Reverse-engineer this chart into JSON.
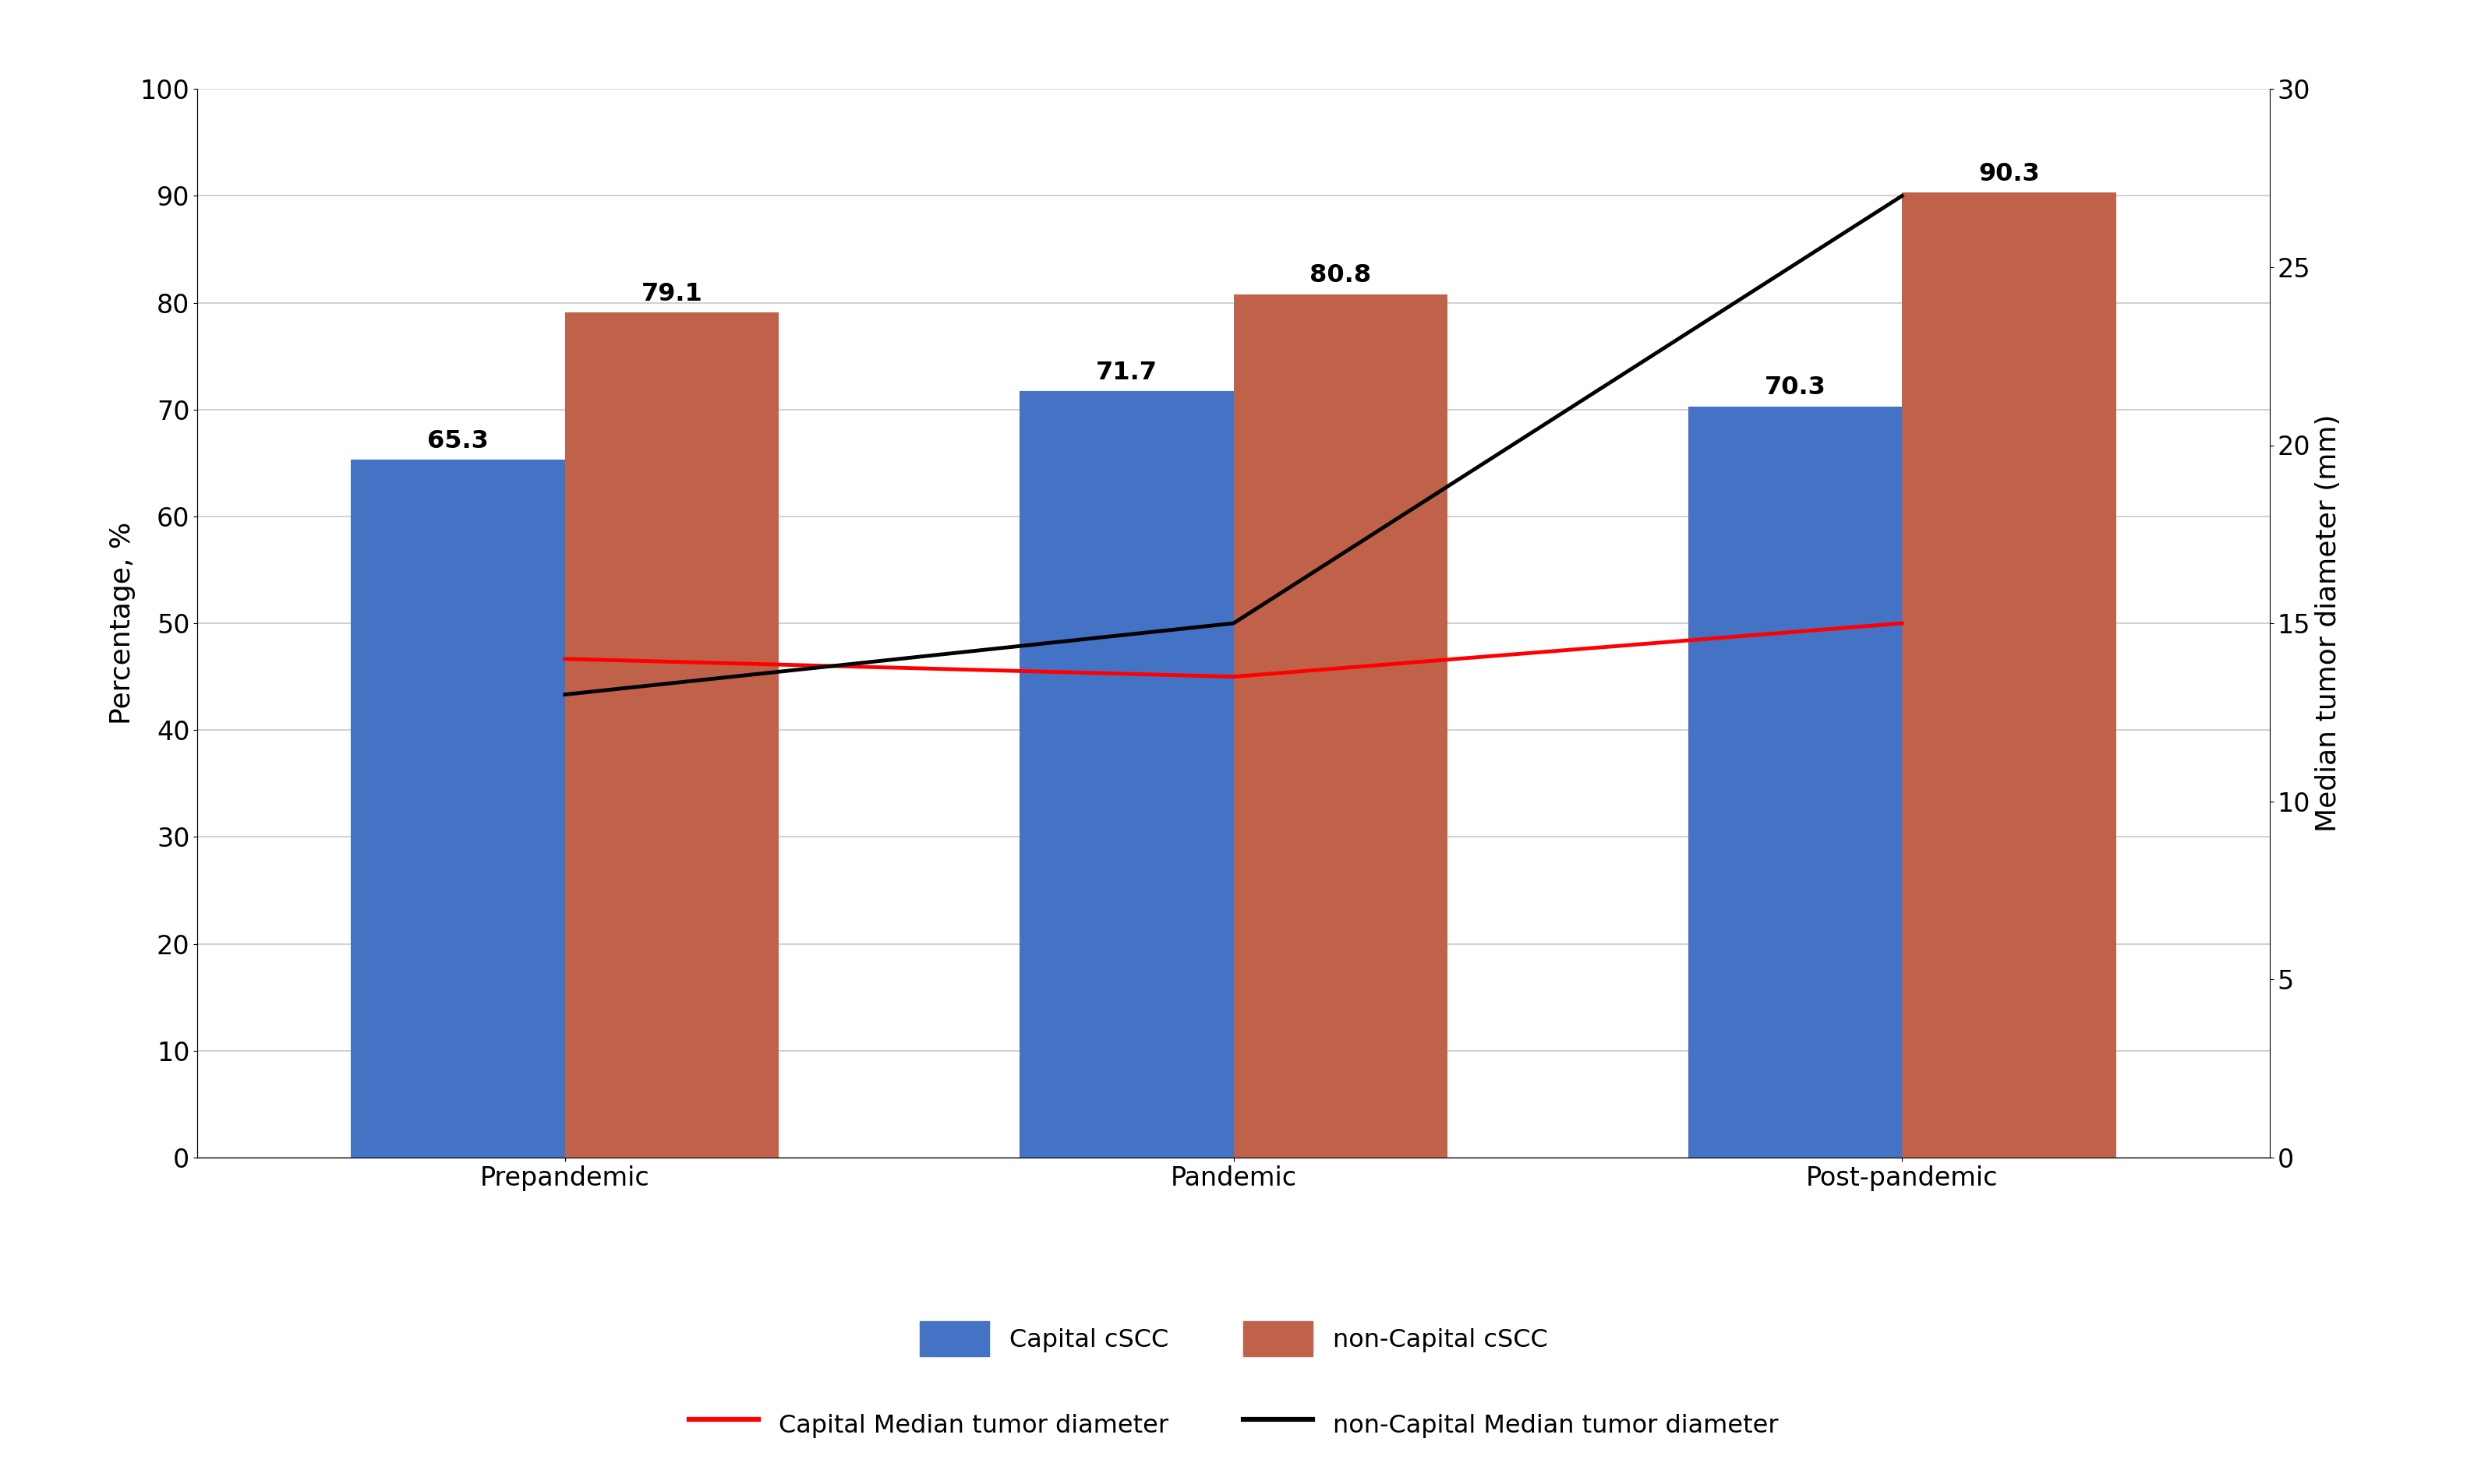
{
  "categories": [
    "Prepandemic",
    "Pandemic",
    "Post-pandemic"
  ],
  "capital_bars": [
    65.3,
    71.7,
    70.3
  ],
  "noncapital_bars": [
    79.1,
    80.8,
    90.3
  ],
  "capital_diameter": [
    14.0,
    13.5,
    15.0
  ],
  "noncapital_diameter": [
    13.0,
    15.0,
    27.0
  ],
  "capital_bar_color": "#4472C4",
  "noncapital_bar_color": "#C0614A",
  "capital_line_color": "#FF0000",
  "noncapital_line_color": "#000000",
  "bar_width": 0.32,
  "left_ylim": [
    0,
    100
  ],
  "right_ylim": [
    0,
    30
  ],
  "left_ylabel": "Percentage, %",
  "right_ylabel": "Median tumor diameter (mm)",
  "left_yticks": [
    0,
    10,
    20,
    30,
    40,
    50,
    60,
    70,
    80,
    90,
    100
  ],
  "right_yticks": [
    0,
    5,
    10,
    15,
    20,
    25,
    30
  ],
  "legend_capital_bar": "Capital cSCC",
  "legend_noncapital_bar": "non-Capital cSCC",
  "legend_capital_line": "Capital Median tumor diameter",
  "legend_noncapital_line": "non-Capital Median tumor diameter",
  "background_color": "#FFFFFF",
  "grid_color": "#C8C8C8",
  "label_fontsize": 26,
  "tick_fontsize": 24,
  "annotation_fontsize": 23,
  "legend_fontsize": 23,
  "line_width": 3.5
}
